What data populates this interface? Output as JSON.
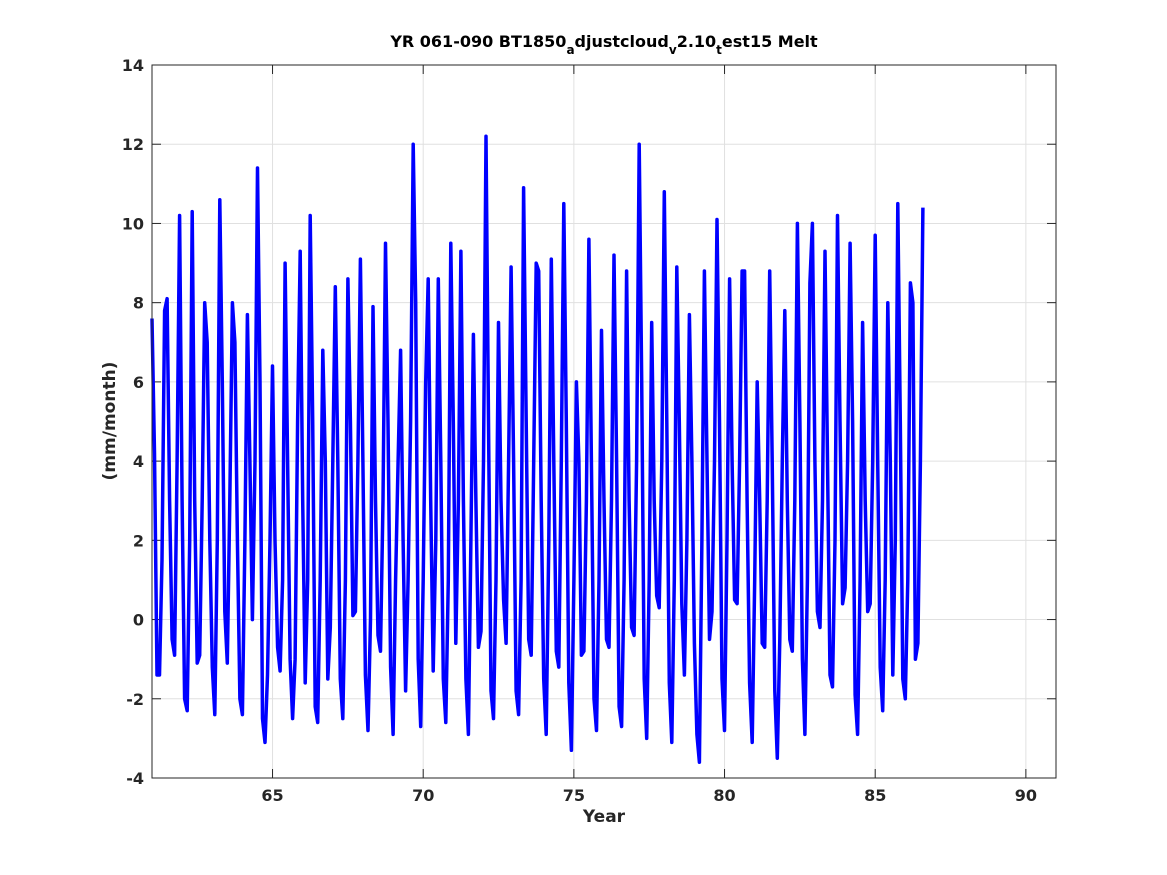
{
  "chart_data": {
    "type": "line",
    "title_parts": [
      "YR 061-090 BT1850",
      "a",
      "djustcloud",
      "v",
      "2.10",
      "t",
      "est15 Melt"
    ],
    "xlabel": "Year",
    "ylabel": "(mm/month)",
    "xlim": [
      61,
      91
    ],
    "ylim": [
      -4,
      14
    ],
    "xticks": [
      65,
      70,
      75,
      80,
      85,
      90
    ],
    "yticks": [
      -4,
      -2,
      0,
      2,
      4,
      6,
      8,
      10,
      12,
      14
    ],
    "grid": true,
    "color": "#0000ff",
    "series": [
      {
        "x_start": 61.0,
        "x_step": 0.083333,
        "values": [
          7.6,
          4.2,
          -1.4,
          -1.4,
          1.5,
          7.8,
          8.1,
          3.0,
          -0.5,
          -0.9,
          4.0,
          10.2,
          3.0,
          -2.0,
          -2.3,
          2.0,
          10.3,
          3.0,
          -1.1,
          -0.9,
          3.0,
          8.0,
          7.0,
          2.0,
          -1.2,
          -2.4,
          2.0,
          10.6,
          6.0,
          0.2,
          -1.1,
          3.0,
          8.0,
          7.0,
          2.0,
          -2.0,
          -2.4,
          2.0,
          7.7,
          4.0,
          0.0,
          4.0,
          11.4,
          6.0,
          -2.5,
          -3.1,
          -1.4,
          2.0,
          6.4,
          2.0,
          -0.7,
          -1.3,
          1.0,
          9.0,
          4.0,
          -1.0,
          -2.5,
          -1.0,
          5.0,
          9.3,
          3.0,
          -1.6,
          1.0,
          10.2,
          5.0,
          -2.2,
          -2.6,
          1.0,
          6.8,
          4.0,
          -1.5,
          -0.2,
          4.0,
          8.4,
          4.0,
          -1.5,
          -2.5,
          1.0,
          8.6,
          5.0,
          0.1,
          0.2,
          4.0,
          9.1,
          4.0,
          -1.4,
          -2.8,
          0.0,
          7.9,
          3.0,
          -0.4,
          -0.8,
          3.0,
          9.5,
          5.0,
          -1.2,
          -2.9,
          1.0,
          4.0,
          6.8,
          2.0,
          -1.8,
          1.0,
          5.0,
          12.0,
          8.0,
          -1.0,
          -2.7,
          1.0,
          6.0,
          8.6,
          3.0,
          -1.3,
          2.0,
          8.6,
          4.0,
          -1.5,
          -2.6,
          1.0,
          9.5,
          5.0,
          -0.6,
          3.0,
          9.3,
          3.0,
          -1.5,
          -2.9,
          2.0,
          7.2,
          3.0,
          -0.7,
          -0.3,
          4.0,
          12.2,
          5.0,
          -1.8,
          -2.5,
          1.0,
          7.5,
          3.0,
          0.5,
          -0.6,
          4.0,
          8.9,
          4.0,
          -1.8,
          -2.4,
          1.0,
          10.9,
          5.0,
          -0.5,
          -0.9,
          4.0,
          9.0,
          8.8,
          3.0,
          -1.5,
          -2.9,
          2.0,
          9.1,
          4.0,
          -0.8,
          -1.2,
          4.0,
          10.5,
          5.0,
          -1.6,
          -3.3,
          1.0,
          6.0,
          4.0,
          -0.9,
          -0.8,
          3.0,
          9.6,
          4.0,
          -2.0,
          -2.8,
          1.0,
          7.3,
          3.0,
          -0.5,
          -0.7,
          3.0,
          9.2,
          4.0,
          -2.2,
          -2.7,
          1.0,
          8.8,
          3.0,
          -0.2,
          -0.4,
          4.0,
          12.0,
          6.0,
          -1.5,
          -3.0,
          1.0,
          7.5,
          3.0,
          0.6,
          0.3,
          4.0,
          10.8,
          5.0,
          -1.6,
          -3.1,
          1.0,
          8.9,
          5.0,
          0.4,
          -1.4,
          2.0,
          7.7,
          4.0,
          -0.6,
          -2.9,
          -3.6,
          2.0,
          8.8,
          4.0,
          -0.5,
          0.2,
          4.0,
          10.1,
          5.0,
          -1.5,
          -2.8,
          2.0,
          8.6,
          4.0,
          0.5,
          0.4,
          4.0,
          8.8,
          8.8,
          3.0,
          -1.6,
          -3.1,
          1.0,
          6.0,
          3.0,
          -0.6,
          -0.7,
          3.0,
          8.8,
          4.0,
          -1.8,
          -3.5,
          -0.5,
          4.0,
          7.8,
          3.0,
          -0.5,
          -0.8,
          3.0,
          10.0,
          5.0,
          -1.0,
          -2.9,
          1.0,
          8.5,
          10.0,
          4.0,
          0.2,
          -0.2,
          3.0,
          9.3,
          4.0,
          -1.4,
          -1.7,
          2.0,
          10.2,
          5.0,
          0.4,
          0.8,
          4.0,
          9.5,
          5.0,
          -1.9,
          -2.9,
          1.0,
          7.5,
          3.0,
          0.2,
          0.4,
          4.0,
          9.7,
          4.0,
          -1.2,
          -2.3,
          1.0,
          8.0,
          4.0,
          -1.4,
          2.0,
          10.5,
          5.0,
          -1.5,
          -2.0,
          1.0,
          8.5,
          8.0,
          -1.0,
          -0.6,
          4.0,
          10.4
        ]
      }
    ]
  }
}
